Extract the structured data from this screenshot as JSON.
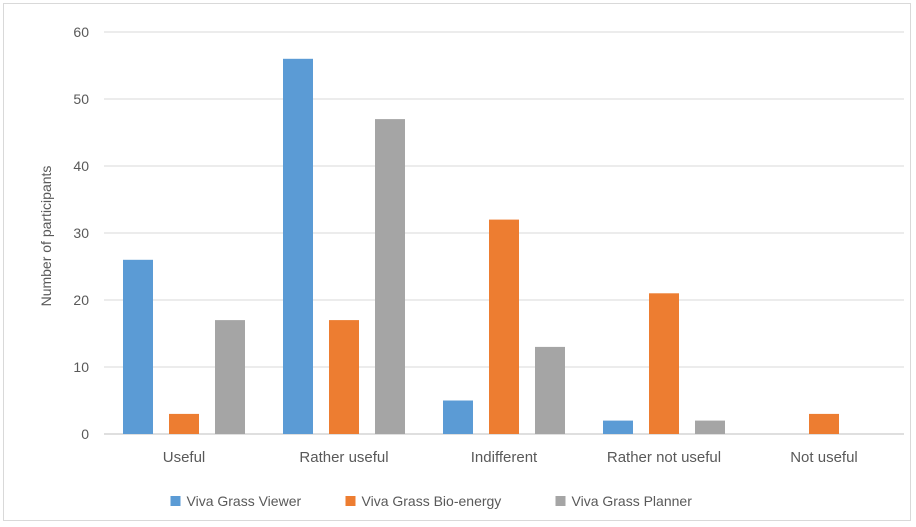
{
  "chart_data": {
    "type": "bar",
    "categories": [
      "Useful",
      "Rather useful",
      "Indifferent",
      "Rather not useful",
      "Not useful"
    ],
    "series": [
      {
        "name": "Viva Grass Viewer",
        "values": [
          26,
          56,
          5,
          2,
          0
        ],
        "color": "#5b9bd5"
      },
      {
        "name": "Viva Grass Bio-energy",
        "values": [
          3,
          17,
          32,
          21,
          3
        ],
        "color": "#ed7d31"
      },
      {
        "name": "Viva Grass Planner",
        "values": [
          17,
          47,
          13,
          2,
          0
        ],
        "color": "#a5a5a5"
      }
    ],
    "title": "",
    "xlabel": "",
    "ylabel": "Number of participants",
    "ylim": [
      0,
      60
    ],
    "yticks": [
      0,
      10,
      20,
      30,
      40,
      50,
      60
    ],
    "grid": true,
    "legend_position": "bottom",
    "gridline_color": "#d9d9d9",
    "axis_color": "#bfbfbf"
  }
}
